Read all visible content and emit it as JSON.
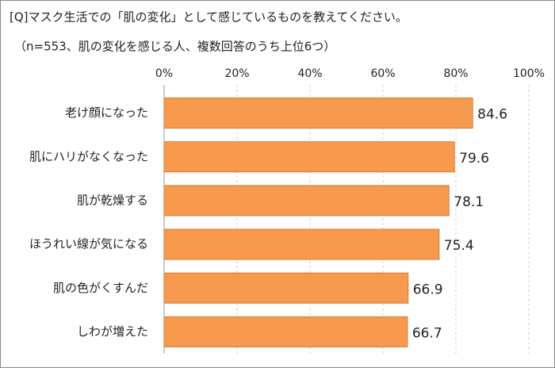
{
  "chart_data": {
    "type": "bar",
    "orientation": "horizontal",
    "title": "[Q]マスク生活での「肌の変化」として感じているものを教えてください。",
    "subtitle": "（n=553、肌の変化を感じる人、複数回答のうち上位6つ）",
    "categories": [
      "老け顔になった",
      "肌にハリがなくなった",
      "肌が乾燥する",
      "ほうれい線が気になる",
      "肌の色がくすんだ",
      "しわが増えた"
    ],
    "values": [
      84.6,
      79.6,
      78.1,
      75.4,
      66.9,
      66.7
    ],
    "color": "#f79a4e",
    "xlim": [
      0,
      100
    ],
    "xticks": [
      {
        "value": 0,
        "label": "0%"
      },
      {
        "value": 20,
        "label": "20%"
      },
      {
        "value": 40,
        "label": "40%"
      },
      {
        "value": 60,
        "label": "60%"
      },
      {
        "value": 80,
        "label": "80%"
      },
      {
        "value": 100,
        "label": "100%"
      }
    ],
    "grid": true
  }
}
